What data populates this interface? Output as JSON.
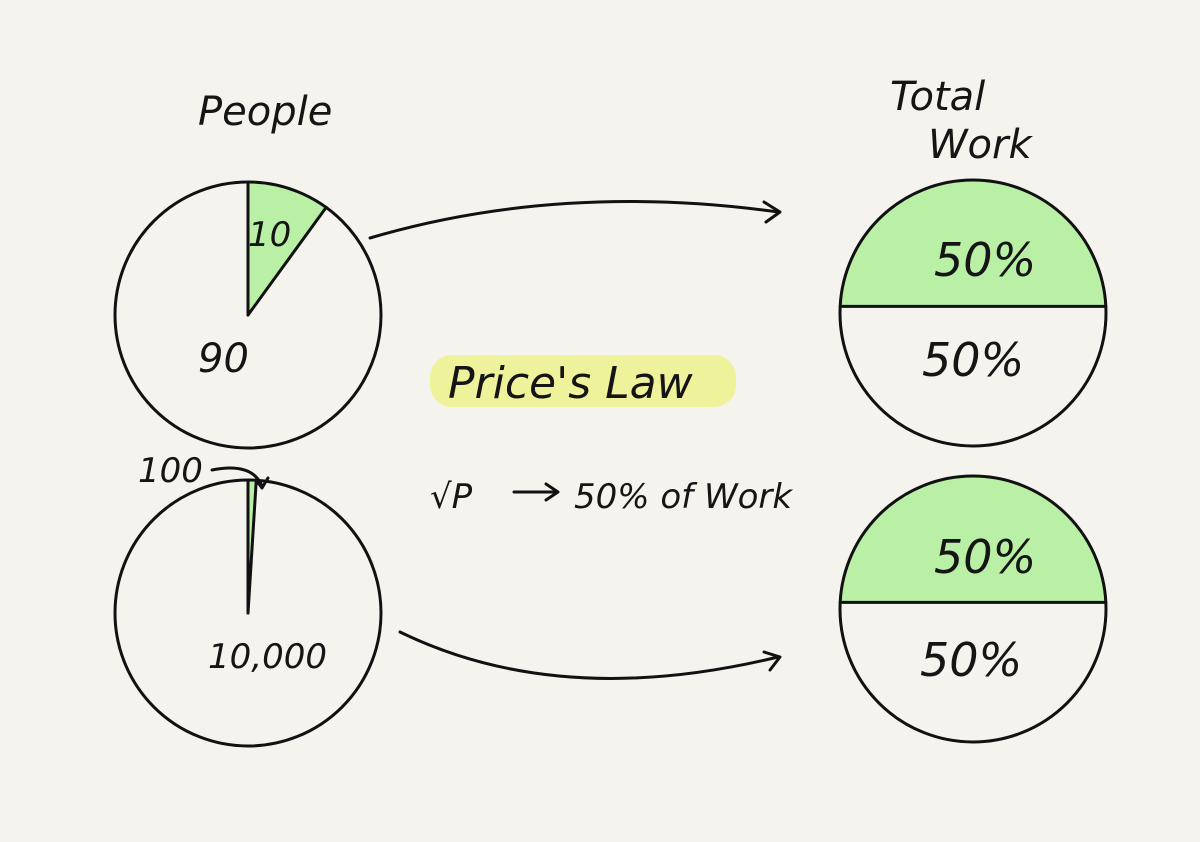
{
  "headers": {
    "people": "People",
    "total_work_line1": "Total",
    "total_work_line2": "Work"
  },
  "center": {
    "title": "Price's Law",
    "formula_symbol": "√P",
    "formula_rest": "50% of Work"
  },
  "colors": {
    "green": "#b9f0a6",
    "highlight": "#eef29a",
    "ink": "#111111",
    "paper": "#f5f3ee"
  },
  "chart_data": [
    {
      "type": "pie",
      "name_hint": "people-small",
      "slices": [
        {
          "label": "10",
          "value": 10
        },
        {
          "label": "90",
          "value": 90
        }
      ]
    },
    {
      "type": "pie",
      "name_hint": "people-large",
      "slices": [
        {
          "label": "100",
          "value": 100
        },
        {
          "label": "10,000",
          "value": 10000
        }
      ]
    },
    {
      "type": "pie",
      "name_hint": "work-top",
      "slices": [
        {
          "label": "50%",
          "value": 50
        },
        {
          "label": "50%",
          "value": 50
        }
      ]
    },
    {
      "type": "pie",
      "name_hint": "work-bottom",
      "slices": [
        {
          "label": "50%",
          "value": 50
        },
        {
          "label": "50%",
          "value": 50
        }
      ]
    }
  ]
}
